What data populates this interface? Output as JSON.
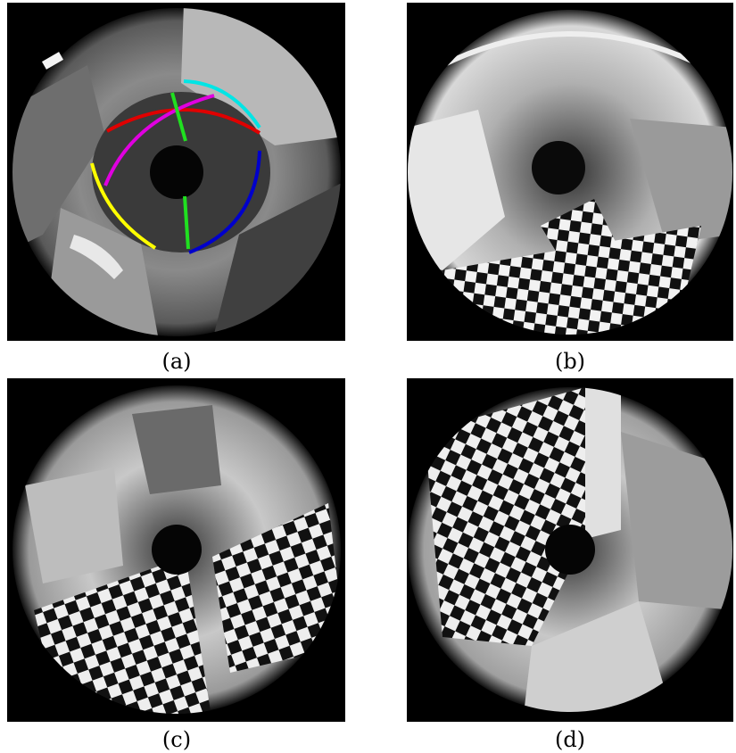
{
  "figure": {
    "panels": [
      {
        "caption": "(a)",
        "content": "fisheye-room-with-colored-calibration-lines",
        "line_colors": [
          "#00e5e5",
          "#e00000",
          "#e000e0",
          "#20e020",
          "#ffff00",
          "#0000cc"
        ]
      },
      {
        "caption": "(b)",
        "content": "fisheye-room-with-checkerboard-bottom"
      },
      {
        "caption": "(c)",
        "content": "fisheye-room-with-checkerboard-bottom-right"
      },
      {
        "caption": "(d)",
        "content": "fisheye-room-with-checkerboard-left"
      }
    ]
  }
}
